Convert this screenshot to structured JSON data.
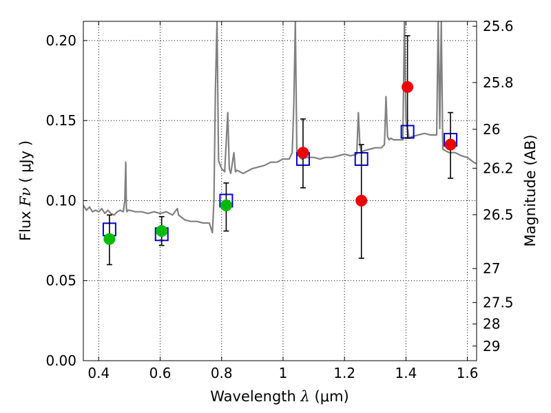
{
  "chart_data": {
    "type": "scatter",
    "xlabel_prefix": "Wavelength",
    "xlabel_symbol": "λ",
    "xlabel_unit": "(μm)",
    "ylabel_prefix": "Flux",
    "ylabel_symbol": "Fν",
    "ylabel_unit": "( μJy )",
    "ylabel_right": "Magnitude (AB)",
    "xlim": [
      0.35,
      1.63
    ],
    "ylim": [
      0.0,
      0.212
    ],
    "grid": true,
    "x_ticks": [
      0.4,
      0.6,
      0.8,
      1.0,
      1.2,
      1.4,
      1.6
    ],
    "x_tick_labels": [
      "0.4",
      "0.6",
      "0.8",
      "1",
      "1.2",
      "1.4",
      "1.6"
    ],
    "y_ticks": [
      0.0,
      0.05,
      0.1,
      0.15,
      0.2
    ],
    "y_tick_labels": [
      "0.00",
      "0.05",
      "0.10",
      "0.15",
      "0.20"
    ],
    "right_ticks": [
      {
        "label": "25.6",
        "mag": 25.6
      },
      {
        "label": "25.8",
        "mag": 25.8
      },
      {
        "label": "26",
        "mag": 26.0
      },
      {
        "label": "26.2",
        "mag": 26.2
      },
      {
        "label": "26.5",
        "mag": 26.5
      },
      {
        "label": "27",
        "mag": 27.0
      },
      {
        "label": "27.5",
        "mag": 27.5
      },
      {
        "label": "28",
        "mag": 28.0
      },
      {
        "label": "29",
        "mag": 29.0
      }
    ],
    "colors": {
      "model": "#808080",
      "model_photometry": "#0000cc",
      "optical_points": "#00bb00",
      "nir_points": "#ee0000",
      "error_bars": "#000000"
    },
    "series": [
      {
        "kind": "model_spectrum",
        "x": [
          0.35,
          0.36,
          0.37,
          0.38,
          0.39,
          0.4,
          0.41,
          0.42,
          0.43,
          0.44,
          0.45,
          0.46,
          0.47,
          0.48,
          0.485,
          0.488,
          0.49,
          0.492,
          0.495,
          0.5,
          0.52,
          0.54,
          0.56,
          0.58,
          0.6,
          0.62,
          0.64,
          0.656,
          0.66,
          0.68,
          0.7,
          0.72,
          0.74,
          0.76,
          0.77,
          0.775,
          0.78,
          0.785,
          0.79,
          0.8,
          0.81,
          0.82,
          0.825,
          0.83,
          0.84,
          0.845,
          0.85,
          0.86,
          0.87,
          0.88,
          0.9,
          0.92,
          0.94,
          0.96,
          0.98,
          1.0,
          1.02,
          1.03,
          1.035,
          1.04,
          1.045,
          1.05,
          1.06,
          1.08,
          1.1,
          1.12,
          1.14,
          1.16,
          1.18,
          1.2,
          1.22,
          1.24,
          1.245,
          1.25,
          1.255,
          1.26,
          1.28,
          1.3,
          1.32,
          1.33,
          1.335,
          1.34,
          1.345,
          1.35,
          1.36,
          1.38,
          1.39,
          1.395,
          1.4,
          1.405,
          1.41,
          1.42,
          1.44,
          1.46,
          1.48,
          1.5,
          1.505,
          1.51,
          1.515,
          1.52,
          1.54,
          1.56,
          1.58,
          1.6,
          1.62,
          1.63
        ],
        "y": [
          0.097,
          0.094,
          0.096,
          0.093,
          0.094,
          0.093,
          0.095,
          0.092,
          0.094,
          0.092,
          0.091,
          0.093,
          0.094,
          0.093,
          0.1,
          0.124,
          0.095,
          0.093,
          0.094,
          0.094,
          0.093,
          0.093,
          0.092,
          0.093,
          0.092,
          0.093,
          0.091,
          0.095,
          0.091,
          0.088,
          0.087,
          0.087,
          0.086,
          0.086,
          0.08,
          0.1,
          0.17,
          0.212,
          0.125,
          0.12,
          0.118,
          0.155,
          0.12,
          0.117,
          0.13,
          0.118,
          0.119,
          0.118,
          0.117,
          0.118,
          0.12,
          0.121,
          0.122,
          0.124,
          0.124,
          0.126,
          0.126,
          0.13,
          0.16,
          0.212,
          0.13,
          0.128,
          0.126,
          0.127,
          0.127,
          0.126,
          0.127,
          0.127,
          0.128,
          0.129,
          0.128,
          0.129,
          0.155,
          0.135,
          0.13,
          0.131,
          0.132,
          0.133,
          0.133,
          0.135,
          0.165,
          0.14,
          0.138,
          0.139,
          0.138,
          0.138,
          0.138,
          0.212,
          0.15,
          0.145,
          0.139,
          0.14,
          0.141,
          0.142,
          0.141,
          0.141,
          0.212,
          0.145,
          0.212,
          0.132,
          0.13,
          0.13,
          0.128,
          0.127,
          0.124,
          0.123
        ]
      },
      {
        "kind": "model_photometry",
        "x": [
          0.435,
          0.605,
          0.815,
          1.065,
          1.255,
          1.405,
          1.545
        ],
        "y": [
          0.082,
          0.079,
          0.1,
          0.126,
          0.126,
          0.143,
          0.138
        ]
      },
      {
        "kind": "observed_optical",
        "x": [
          0.435,
          0.605,
          0.815
        ],
        "y": [
          0.076,
          0.081,
          0.097
        ],
        "err_low": [
          0.06,
          0.072,
          0.081
        ],
        "err_high": [
          0.091,
          0.09,
          0.111
        ]
      },
      {
        "kind": "observed_nir",
        "x": [
          1.065,
          1.255,
          1.405,
          1.545
        ],
        "y": [
          0.13,
          0.1,
          0.171,
          0.135
        ],
        "err_low": [
          0.108,
          0.064,
          0.139,
          0.114
        ],
        "err_high": [
          0.151,
          0.135,
          0.203,
          0.155
        ]
      }
    ]
  }
}
